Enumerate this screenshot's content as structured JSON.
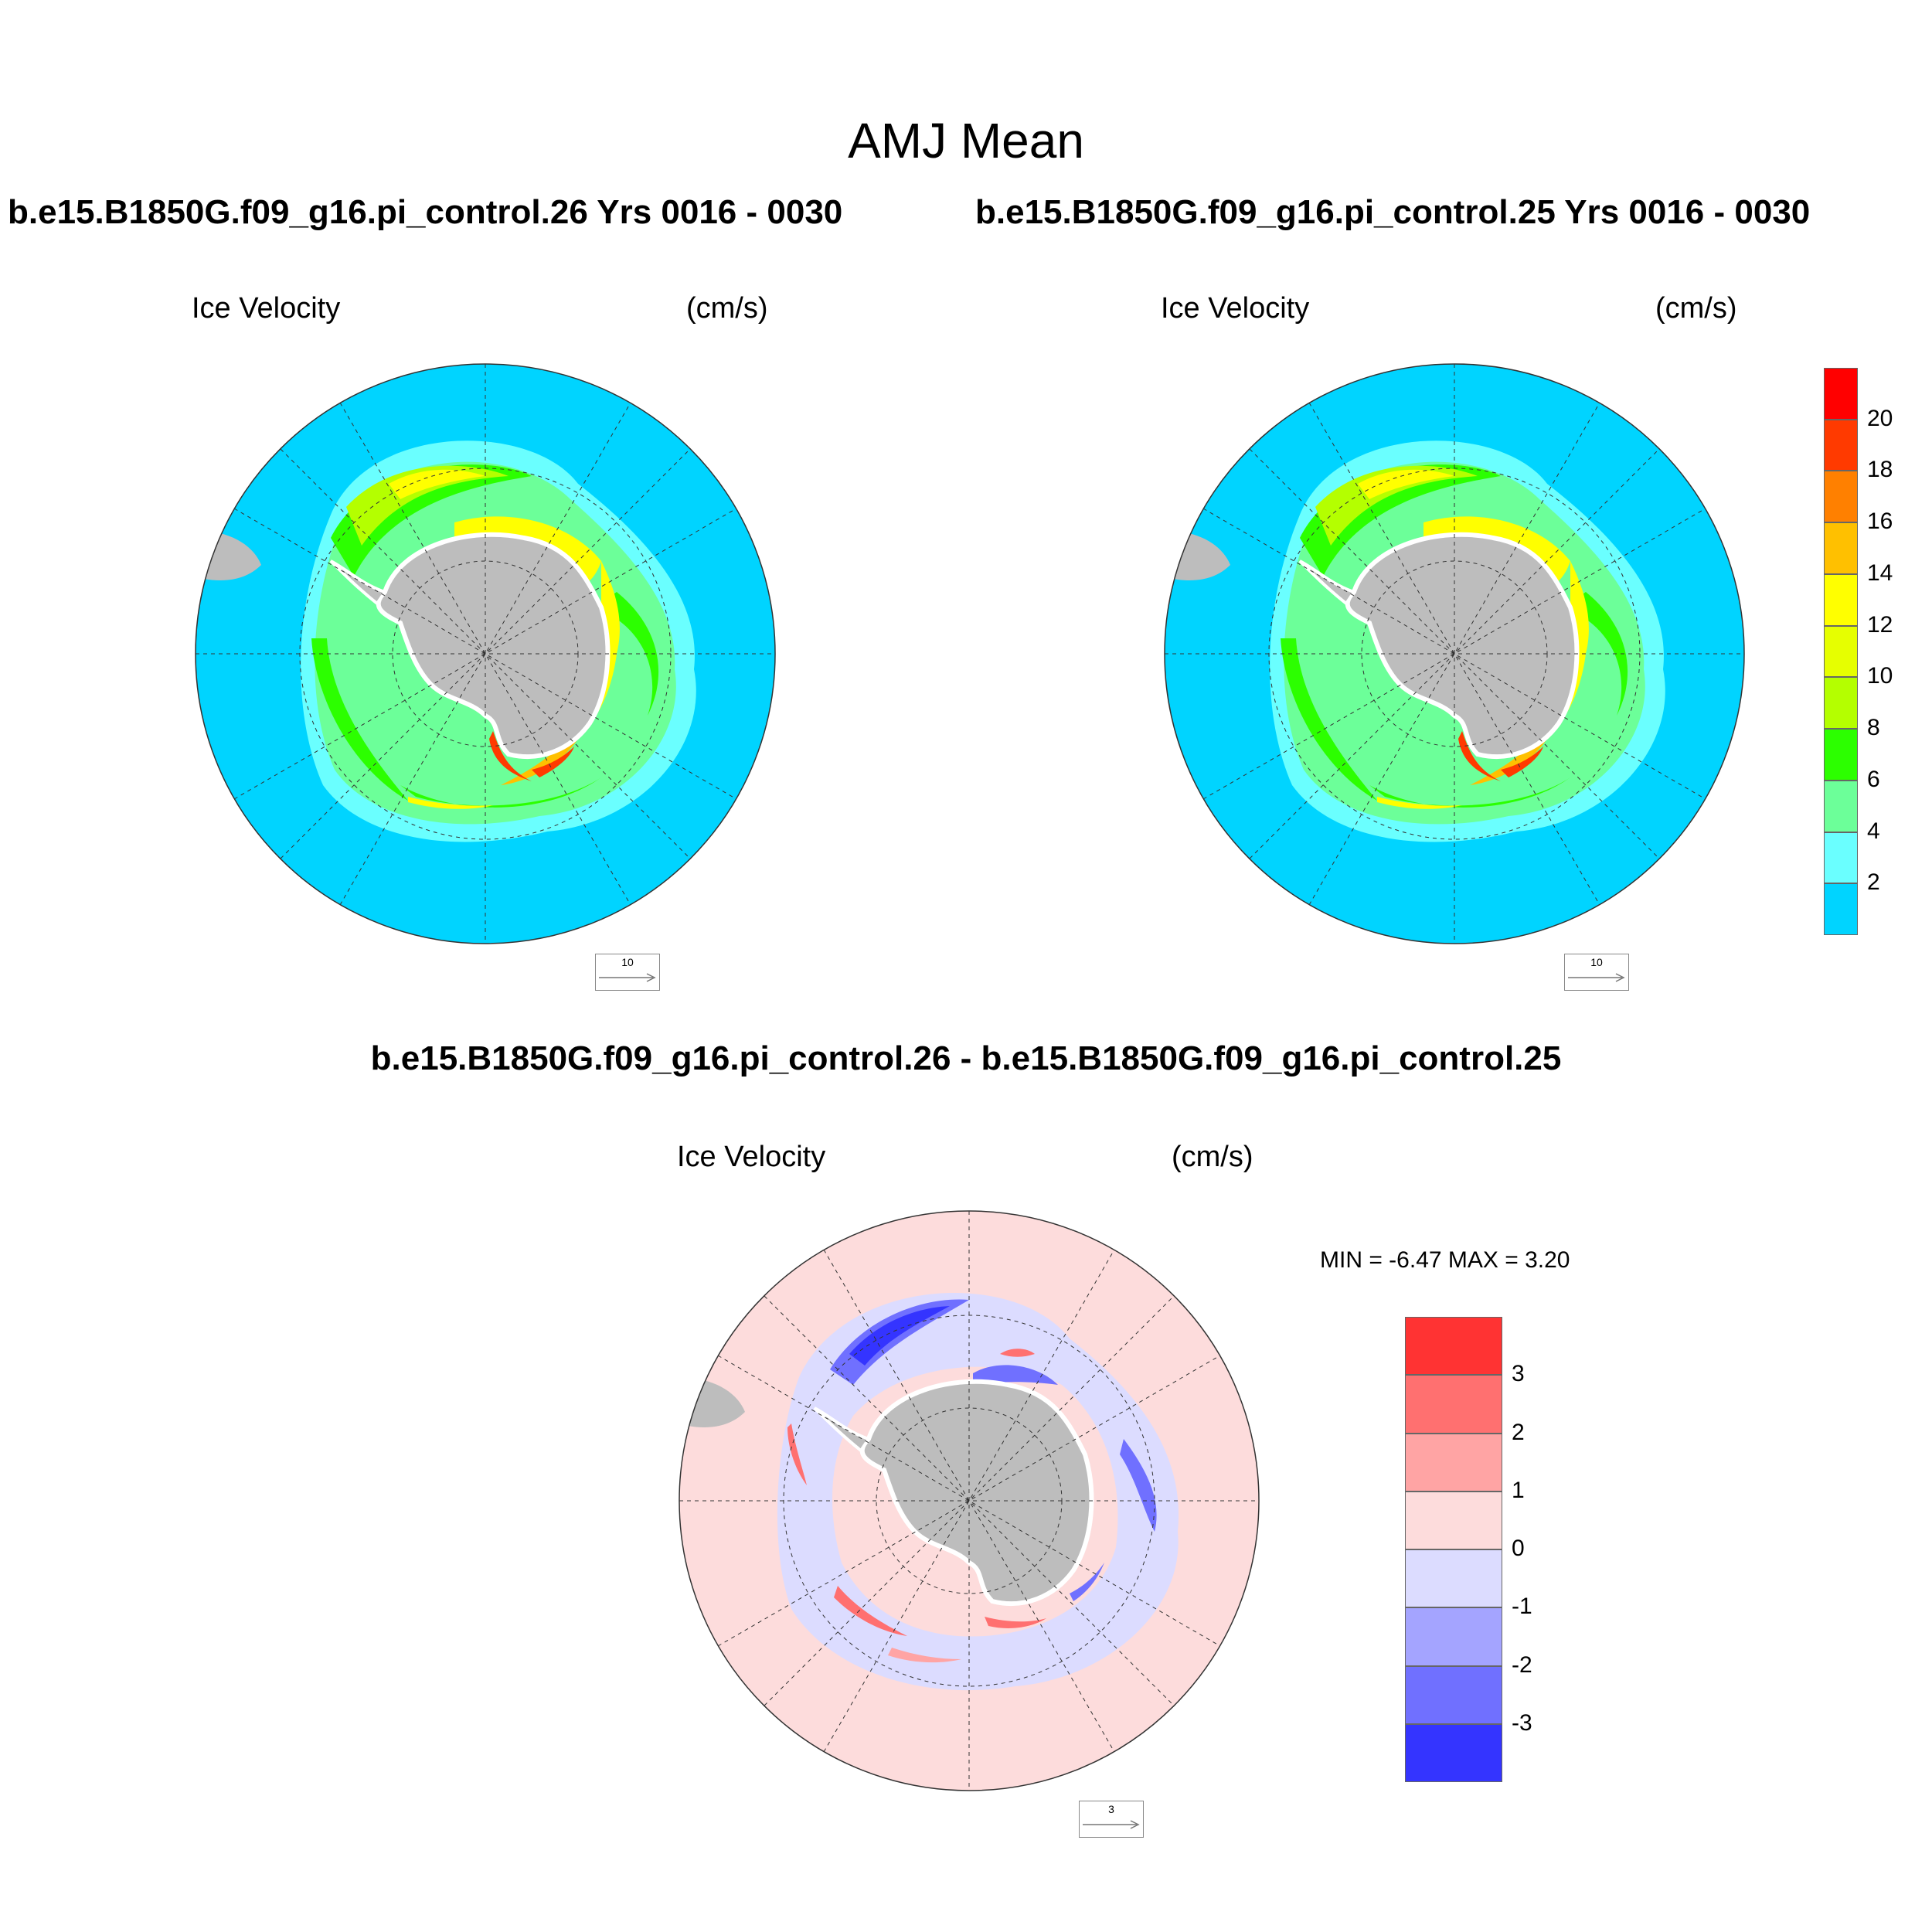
{
  "header": {
    "title": "AMJ Mean"
  },
  "panels": [
    {
      "case_label": "b.e15.B1850G.f09_g16.pi_control.26  Yrs 0016 - 0030",
      "field_label": "Ice Velocity",
      "units_label": "(cm/s)",
      "reference_vector": "10"
    },
    {
      "case_label": "b.e15.B1850G.f09_g16.pi_control.25  Yrs 0016 - 0030",
      "field_label": "Ice Velocity",
      "units_label": "(cm/s)",
      "reference_vector": "10"
    }
  ],
  "difference": {
    "title": "b.e15.B1850G.f09_g16.pi_control.26 - b.e15.B1850G.f09_g16.pi_control.25",
    "field_label": "Ice Velocity",
    "units_label": "(cm/s)",
    "min_max": "MIN =  -6.47 MAX =   3.20",
    "reference_vector": "3"
  },
  "colorbar_velocity": {
    "labels": [
      "20",
      "18",
      "16",
      "14",
      "12",
      "10",
      "8",
      "6",
      "4",
      "2"
    ],
    "colors": [
      "#ff0000",
      "#ff3a00",
      "#ff8000",
      "#ffc000",
      "#ffff00",
      "#e6ff00",
      "#b4ff00",
      "#2cff00",
      "#6cff99",
      "#6affff",
      "#00d4ff"
    ]
  },
  "colorbar_difference": {
    "labels": [
      "3",
      "2",
      "1",
      "0",
      "-1",
      "-2",
      "-3"
    ],
    "colors": [
      "#ff3333",
      "#ff7070",
      "#ffa4a4",
      "#fddcdc",
      "#dcdcff",
      "#a4a4ff",
      "#7070ff",
      "#3434ff"
    ]
  },
  "colors": {
    "ocean_velocity": "#00d4ff",
    "ocean_difference": "#fddcdc",
    "land": "#bdbdbd"
  }
}
